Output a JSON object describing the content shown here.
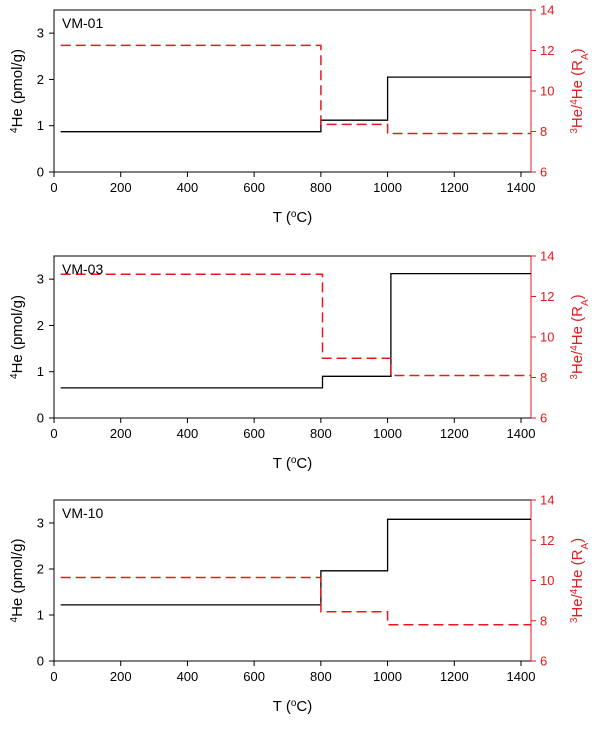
{
  "colors": {
    "he4_line": "#000000",
    "ratio_line": "#e41a1c",
    "frame": "#000000"
  },
  "chart_data": [
    {
      "type": "line",
      "panel_label": "VM-01",
      "xlabel": "T (°C)",
      "ylabel_left": "4He (pmol/g)",
      "ylabel_right": "3He/4He (RA)",
      "xlim": [
        0,
        1430
      ],
      "ylim_left": [
        0,
        3.5
      ],
      "ylim_right": [
        6,
        14
      ],
      "x_ticks": [
        "0",
        "200",
        "400",
        "600",
        "800",
        "1000",
        "1200",
        "1400"
      ],
      "y_ticks_left": [
        "0",
        "1",
        "2",
        "3"
      ],
      "y_ticks_right": [
        "6",
        "8",
        "10",
        "12",
        "14"
      ],
      "series": [
        {
          "axis": "left",
          "style": "solid step",
          "steps": [
            {
              "x_start": 20,
              "x_end": 800,
              "y": 0.87
            },
            {
              "x_start": 800,
              "x_end": 1000,
              "y": 1.12
            },
            {
              "x_start": 1000,
              "x_end": 1430,
              "y": 2.05
            }
          ]
        },
        {
          "axis": "right",
          "style": "dashed step",
          "steps": [
            {
              "x_start": 20,
              "x_end": 800,
              "y": 12.25
            },
            {
              "x_start": 800,
              "x_end": 1000,
              "y": 8.35
            },
            {
              "x_start": 1000,
              "x_end": 1430,
              "y": 7.9
            }
          ]
        }
      ]
    },
    {
      "type": "line",
      "panel_label": "VM-03",
      "xlabel": "T (°C)",
      "ylabel_left": "4He (pmol/g)",
      "ylabel_right": "3He/4He (RA)",
      "xlim": [
        0,
        1430
      ],
      "ylim_left": [
        0,
        3.5
      ],
      "ylim_right": [
        6,
        14
      ],
      "x_ticks": [
        "0",
        "200",
        "400",
        "600",
        "800",
        "1000",
        "1200",
        "1400"
      ],
      "y_ticks_left": [
        "0",
        "1",
        "2",
        "3"
      ],
      "y_ticks_right": [
        "6",
        "8",
        "10",
        "12",
        "14"
      ],
      "series": [
        {
          "axis": "left",
          "style": "solid step",
          "steps": [
            {
              "x_start": 20,
              "x_end": 805,
              "y": 0.65
            },
            {
              "x_start": 805,
              "x_end": 1010,
              "y": 0.9
            },
            {
              "x_start": 1010,
              "x_end": 1430,
              "y": 3.12
            }
          ]
        },
        {
          "axis": "right",
          "style": "dashed step",
          "steps": [
            {
              "x_start": 20,
              "x_end": 805,
              "y": 13.1
            },
            {
              "x_start": 805,
              "x_end": 1010,
              "y": 8.95
            },
            {
              "x_start": 1010,
              "x_end": 1430,
              "y": 8.1
            }
          ]
        }
      ]
    },
    {
      "type": "line",
      "panel_label": "VM-10",
      "xlabel": "T (°C)",
      "ylabel_left": "4He (pmol/g)",
      "ylabel_right": "3He/4He (RA)",
      "xlim": [
        0,
        1430
      ],
      "ylim_left": [
        0,
        3.5
      ],
      "ylim_right": [
        6,
        14
      ],
      "x_ticks": [
        "0",
        "200",
        "400",
        "600",
        "800",
        "1000",
        "1200",
        "1400"
      ],
      "y_ticks_left": [
        "0",
        "1",
        "2",
        "3"
      ],
      "y_ticks_right": [
        "6",
        "8",
        "10",
        "12",
        "14"
      ],
      "series": [
        {
          "axis": "left",
          "style": "solid step",
          "steps": [
            {
              "x_start": 20,
              "x_end": 800,
              "y": 1.22
            },
            {
              "x_start": 800,
              "x_end": 1000,
              "y": 1.96
            },
            {
              "x_start": 1000,
              "x_end": 1430,
              "y": 3.08
            }
          ]
        },
        {
          "axis": "right",
          "style": "dashed step",
          "steps": [
            {
              "x_start": 20,
              "x_end": 800,
              "y": 10.15
            },
            {
              "x_start": 800,
              "x_end": 1000,
              "y": 8.45
            },
            {
              "x_start": 1000,
              "x_end": 1430,
              "y": 7.8
            }
          ]
        }
      ]
    }
  ]
}
